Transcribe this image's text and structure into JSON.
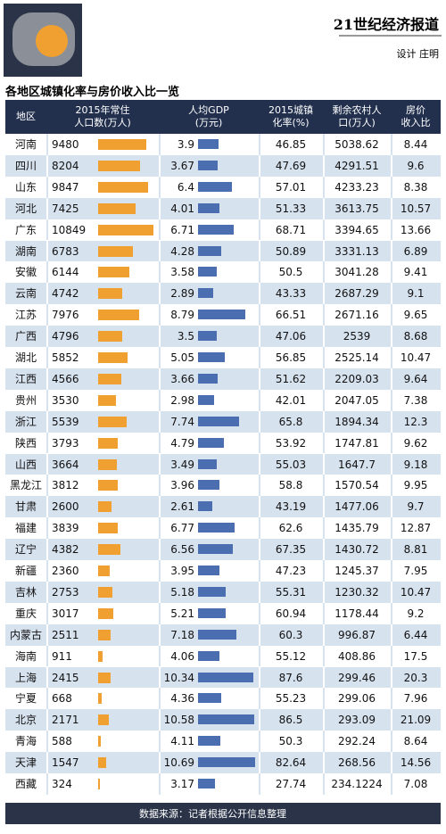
{
  "header": {
    "brand": "21世纪经济报道",
    "credit": "设计 庄明"
  },
  "title": "各地区城镇化率与房价收入比一览",
  "table": {
    "columns": [
      [
        "地区"
      ],
      [
        "2015年常住",
        "人口数(万人)"
      ],
      [
        "人均GDP",
        "(万元)"
      ],
      [
        "2015城镇",
        "化率(%)"
      ],
      [
        "剩余农村人",
        "口(万人)"
      ],
      [
        "房价",
        "收入比"
      ]
    ],
    "rows": [
      [
        "河南",
        9480,
        3.9,
        46.85,
        5038.62,
        8.44
      ],
      [
        "四川",
        8204,
        3.67,
        47.69,
        4291.51,
        9.6
      ],
      [
        "山东",
        9847,
        6.4,
        57.01,
        4233.23,
        8.38
      ],
      [
        "河北",
        7425,
        4.01,
        51.33,
        3613.75,
        10.57
      ],
      [
        "广东",
        10849,
        6.71,
        68.71,
        3394.65,
        13.66
      ],
      [
        "湖南",
        6783,
        4.28,
        50.89,
        3331.13,
        6.89
      ],
      [
        "安徽",
        6144,
        3.58,
        50.5,
        3041.28,
        9.41
      ],
      [
        "云南",
        4742,
        2.89,
        43.33,
        2687.29,
        9.1
      ],
      [
        "江苏",
        7976,
        8.79,
        66.51,
        2671.16,
        9.65
      ],
      [
        "广西",
        4796,
        3.5,
        47.06,
        2539,
        8.68
      ],
      [
        "湖北",
        5852,
        5.05,
        56.85,
        2525.14,
        10.47
      ],
      [
        "江西",
        4566,
        3.66,
        51.62,
        2209.03,
        9.64
      ],
      [
        "贵州",
        3530,
        2.98,
        42.01,
        2047.05,
        7.38
      ],
      [
        "浙江",
        5539,
        7.74,
        65.8,
        1894.34,
        12.3
      ],
      [
        "陕西",
        3793,
        4.79,
        53.92,
        1747.81,
        9.62
      ],
      [
        "山西",
        3664,
        3.49,
        55.03,
        1647.7,
        9.18
      ],
      [
        "黑龙江",
        3812,
        3.96,
        58.8,
        1570.54,
        9.95
      ],
      [
        "甘肃",
        2600,
        2.61,
        43.19,
        1477.06,
        9.7
      ],
      [
        "福建",
        3839,
        6.77,
        62.6,
        1435.79,
        12.87
      ],
      [
        "辽宁",
        4382,
        6.56,
        67.35,
        1430.72,
        8.81
      ],
      [
        "新疆",
        2360,
        3.95,
        47.23,
        1245.37,
        7.95
      ],
      [
        "吉林",
        2753,
        5.18,
        55.31,
        1230.32,
        10.47
      ],
      [
        "重庆",
        3017,
        5.21,
        60.94,
        1178.44,
        9.2
      ],
      [
        "内蒙古",
        2511,
        7.18,
        60.3,
        996.87,
        6.44
      ],
      [
        "海南",
        911,
        4.06,
        55.12,
        408.86,
        17.5
      ],
      [
        "上海",
        2415,
        10.34,
        87.6,
        299.46,
        20.3
      ],
      [
        "宁夏",
        668,
        4.36,
        55.23,
        299.06,
        7.96
      ],
      [
        "北京",
        2171,
        10.58,
        86.5,
        293.09,
        21.09
      ],
      [
        "青海",
        588,
        4.11,
        50.3,
        292.24,
        8.64
      ],
      [
        "天津",
        1547,
        10.69,
        82.64,
        268.56,
        14.56
      ],
      [
        "西藏",
        324,
        3.17,
        27.74,
        234.1224,
        7.08
      ]
    ]
  },
  "source": "数据来源：记者根据公开信息整理"
}
